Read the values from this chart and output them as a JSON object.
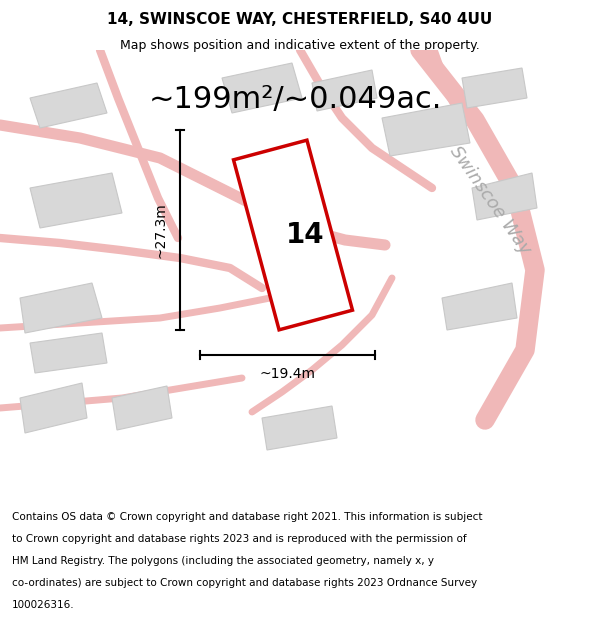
{
  "title": "14, SWINSCOE WAY, CHESTERFIELD, S40 4UU",
  "subtitle": "Map shows position and indicative extent of the property.",
  "area_label": "~199m²/~0.049ac.",
  "width_label": "~19.4m",
  "height_label": "~27.3m",
  "number_label": "14",
  "street_label": "Swinscoe Way",
  "footer_lines": [
    "Contains OS data © Crown copyright and database right 2021. This information is subject",
    "to Crown copyright and database rights 2023 and is reproduced with the permission of",
    "HM Land Registry. The polygons (including the associated geometry, namely x, y",
    "co-ordinates) are subject to Crown copyright and database rights 2023 Ordnance Survey",
    "100026316."
  ],
  "map_bg": "#eeecec",
  "road_color": "#f0b8b8",
  "building_color": "#d8d8d8",
  "building_edge": "#c8c8c8",
  "highlight_color": "#cc0000",
  "highlight_fill": "#ffffff",
  "title_fontsize": 11,
  "subtitle_fontsize": 9,
  "area_fontsize": 22,
  "number_fontsize": 20,
  "street_fontsize": 13,
  "dim_line_fontsize": 10,
  "footer_fontsize": 7.5
}
